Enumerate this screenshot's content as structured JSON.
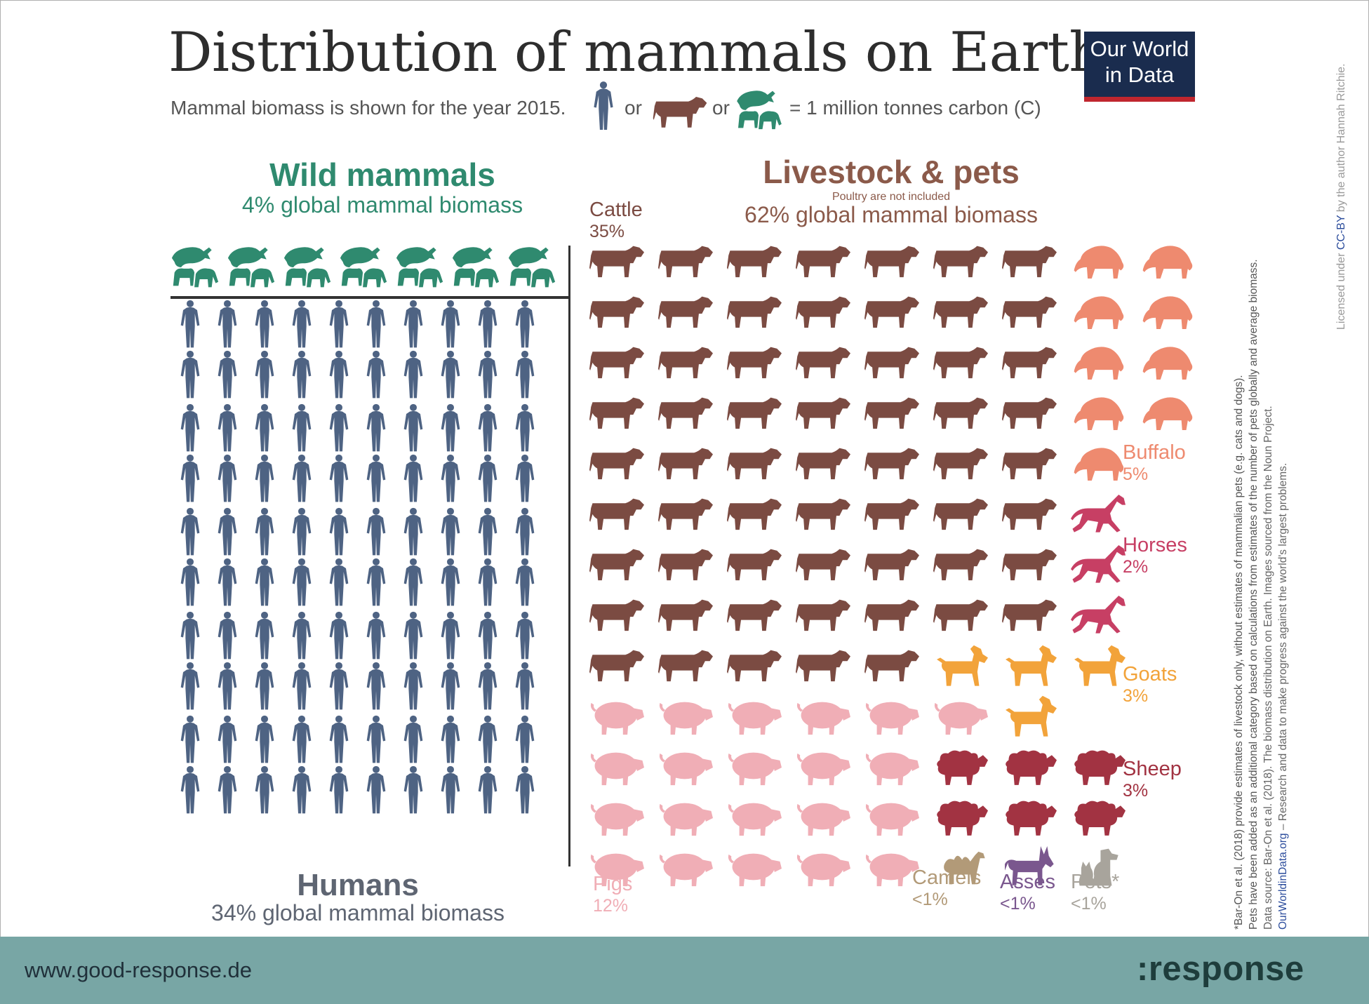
{
  "title": "Distribution of mammals on Earth",
  "subtitle": "Mammal biomass is shown for the year 2015.",
  "legend": {
    "or_1": "or",
    "or_2": "or",
    "equals": "= 1 million tonnes carbon (C)"
  },
  "logo": {
    "line1": "Our World",
    "line2": "in Data"
  },
  "wild": {
    "title": "Wild mammals",
    "subtitle": "4% global mammal biomass",
    "icon_count": 7,
    "color": "#2f8a6f"
  },
  "humans": {
    "title": "Humans",
    "subtitle": "34% global mammal biomass",
    "icon_count": 100,
    "color": "#4e6383"
  },
  "livestock": {
    "title": "Livestock & pets",
    "note": "Poultry are not included",
    "subtitle": "62% global mammal biomass",
    "groups": [
      {
        "name": "Cattle",
        "pct": "35%",
        "count": 63,
        "color": "#7b4b42"
      },
      {
        "name": "Buffalo",
        "pct": "5%",
        "count": 9,
        "color": "#ee8a6f"
      },
      {
        "name": "Horses",
        "pct": "2%",
        "count": 3,
        "color": "#c73f64"
      },
      {
        "name": "Goats",
        "pct": "3%",
        "count": 4,
        "color": "#f2a33a"
      },
      {
        "name": "Pigs",
        "pct": "12%",
        "count": 21,
        "color": "#f0aeb6"
      },
      {
        "name": "Sheep",
        "pct": "3%",
        "count": 6,
        "color": "#a23342"
      },
      {
        "name": "Camels",
        "pct": "<1%",
        "count": 1,
        "color": "#b29a78"
      },
      {
        "name": "Asses",
        "pct": "<1%",
        "count": 1,
        "color": "#7a578e"
      },
      {
        "name": "Pets*",
        "pct": "<1%",
        "count": 1,
        "color": "#a8a49c"
      }
    ]
  },
  "notes": {
    "line1": "*Bar-On et al. (2018) provide estimates of livestock only, without estimates of mammalian pets (e.g. cats and dogs).",
    "line2": "Pets have been added as an additional category based on calculations from estimates of the number of pets globally and average biomass.",
    "line3": "Data source: Bar-On et al. (2018). The biomass distribution on Earth. Images sourced from the Noun Project.",
    "line4_link": "OurWorldinData.org",
    "line4_text": " – Research and data to make progress against the world's largest problems.",
    "license_pre": "Licensed under ",
    "license_link": "CC-BY",
    "license_post": " by the author Hannah Ritchie."
  },
  "footer": {
    "url": "www.good-response.de",
    "brand": ":response"
  }
}
